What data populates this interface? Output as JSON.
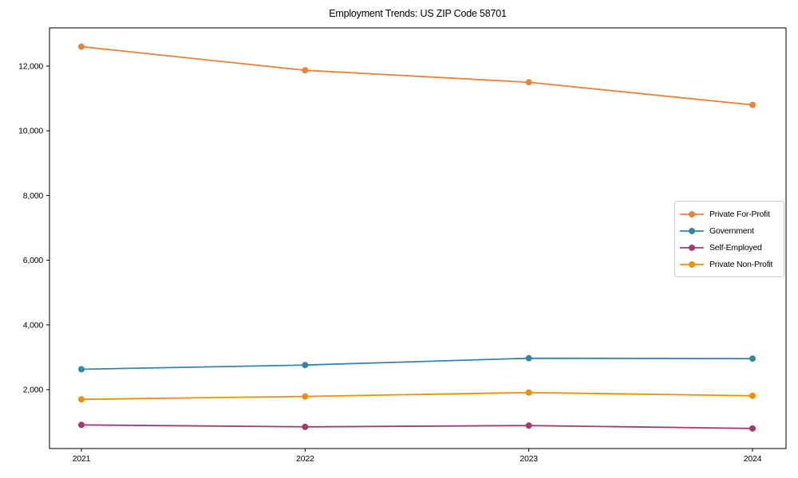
{
  "chart_data": {
    "type": "line",
    "title": "Employment Trends: US ZIP Code 58701",
    "x": [
      "2021",
      "2022",
      "2023",
      "2024"
    ],
    "series": [
      {
        "name": "Private For-Profit",
        "color": "#E8833A",
        "values": [
          12600,
          11870,
          11500,
          10800
        ]
      },
      {
        "name": "Government",
        "color": "#2E86AB",
        "values": [
          2630,
          2760,
          2970,
          2960
        ]
      },
      {
        "name": "Self-Employed",
        "color": "#A23B72",
        "values": [
          910,
          850,
          890,
          800
        ]
      },
      {
        "name": "Private Non-Profit",
        "color": "#F18F01",
        "values": [
          1700,
          1790,
          1910,
          1810
        ]
      }
    ],
    "yticks": [
      2000,
      4000,
      6000,
      8000,
      10000,
      12000
    ],
    "ylim": [
      180,
      13180
    ],
    "xlabel": "",
    "ylabel": "",
    "grid": false,
    "legend_position": "middle-right",
    "marker": "circle",
    "axis_color": "#000000",
    "background_color": "#ffffff"
  }
}
